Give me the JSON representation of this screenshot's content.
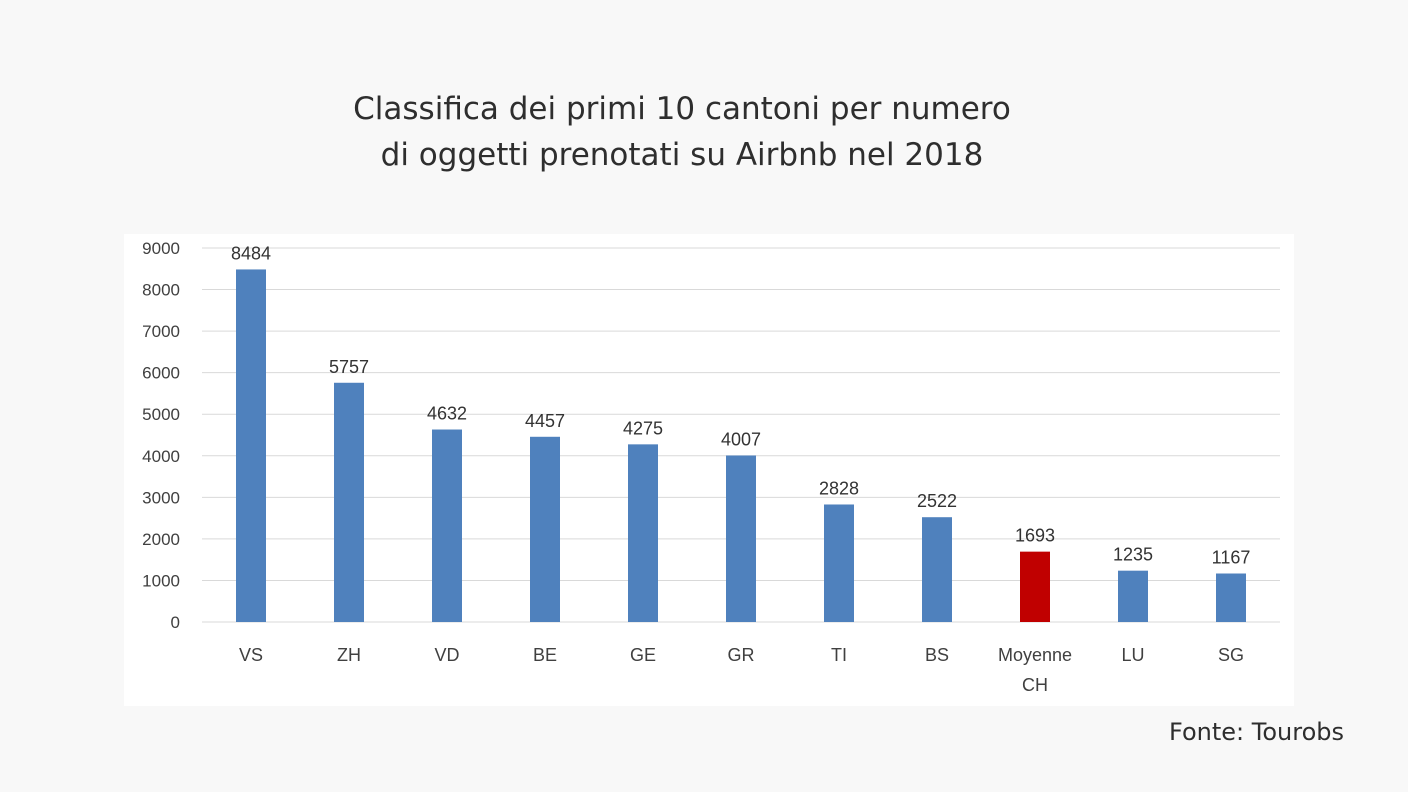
{
  "title_lines": [
    "Classifica dei primi 10 cantoni per numero",
    "di oggetti prenotati su Airbnb nel 2018"
  ],
  "source": "Fonte: Tourobs",
  "colors": {
    "bar": "#4f81bd",
    "highlight": "#c00000",
    "grid": "#d9d9d9"
  },
  "chart_data": {
    "type": "bar",
    "title": "Classifica dei primi 10 cantoni per numero di oggetti prenotati su Airbnb nel 2018",
    "categories": [
      "VS",
      "ZH",
      "VD",
      "BE",
      "GE",
      "GR",
      "TI",
      "BS",
      "Moyenne CH",
      "LU",
      "SG"
    ],
    "category_lines": [
      [
        "VS"
      ],
      [
        "ZH"
      ],
      [
        "VD"
      ],
      [
        "BE"
      ],
      [
        "GE"
      ],
      [
        "GR"
      ],
      [
        "TI"
      ],
      [
        "BS"
      ],
      [
        "Moyenne",
        "CH"
      ],
      [
        "LU"
      ],
      [
        "SG"
      ]
    ],
    "values": [
      8484,
      5757,
      4632,
      4457,
      4275,
      4007,
      2828,
      2522,
      1693,
      1235,
      1167
    ],
    "highlight_category": "Moyenne CH",
    "ylim": [
      0,
      9000
    ],
    "yticks": [
      0,
      1000,
      2000,
      3000,
      4000,
      5000,
      6000,
      7000,
      8000,
      9000
    ],
    "grid": true,
    "data_labels": true,
    "legend": "none",
    "xlabel": "",
    "ylabel": ""
  }
}
